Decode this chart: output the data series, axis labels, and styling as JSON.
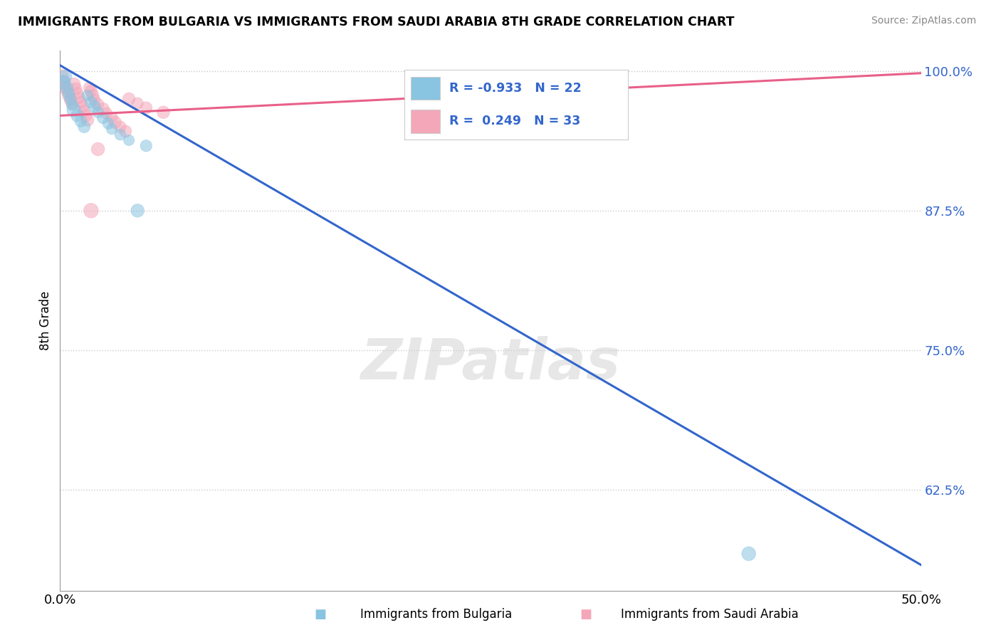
{
  "title": "IMMIGRANTS FROM BULGARIA VS IMMIGRANTS FROM SAUDI ARABIA 8TH GRADE CORRELATION CHART",
  "source": "Source: ZipAtlas.com",
  "xlabel_blue": "Immigrants from Bulgaria",
  "xlabel_pink": "Immigrants from Saudi Arabia",
  "ylabel": "8th Grade",
  "xlim": [
    0.0,
    0.5
  ],
  "ylim": [
    0.535,
    1.018
  ],
  "yticks": [
    0.625,
    0.75,
    0.875,
    1.0
  ],
  "ytick_labels": [
    "62.5%",
    "75.0%",
    "87.5%",
    "100.0%"
  ],
  "xticks": [
    0.0,
    0.1,
    0.2,
    0.3,
    0.4,
    0.5
  ],
  "xtick_labels": [
    "0.0%",
    "",
    "",
    "",
    "",
    "50.0%"
  ],
  "blue_R": -0.933,
  "blue_N": 22,
  "pink_R": 0.249,
  "pink_N": 33,
  "blue_color": "#89c4e1",
  "pink_color": "#f4a7b9",
  "blue_line_color": "#3366cc",
  "pink_line_color": "#e8608a",
  "legend_text_color": "#3366cc",
  "watermark": "ZIPatlas",
  "blue_scatter_x": [
    0.002,
    0.003,
    0.004,
    0.005,
    0.006,
    0.007,
    0.008,
    0.01,
    0.012,
    0.014,
    0.016,
    0.018,
    0.02,
    0.022,
    0.025,
    0.028,
    0.03,
    0.035,
    0.04,
    0.05,
    0.4,
    0.045
  ],
  "blue_scatter_y": [
    0.99,
    0.995,
    0.985,
    0.98,
    0.975,
    0.97,
    0.965,
    0.96,
    0.955,
    0.95,
    0.978,
    0.972,
    0.968,
    0.963,
    0.958,
    0.953,
    0.948,
    0.943,
    0.938,
    0.933,
    0.568,
    0.875
  ],
  "blue_scatter_size": [
    200,
    180,
    160,
    150,
    140,
    130,
    200,
    160,
    140,
    150,
    130,
    140,
    150,
    130,
    140,
    130,
    120,
    130,
    120,
    140,
    200,
    180
  ],
  "pink_scatter_x": [
    0.001,
    0.002,
    0.003,
    0.004,
    0.005,
    0.006,
    0.007,
    0.008,
    0.009,
    0.01,
    0.011,
    0.012,
    0.013,
    0.014,
    0.015,
    0.016,
    0.017,
    0.018,
    0.019,
    0.02,
    0.022,
    0.025,
    0.027,
    0.03,
    0.032,
    0.035,
    0.038,
    0.04,
    0.045,
    0.05,
    0.06,
    0.018,
    0.022
  ],
  "pink_scatter_y": [
    0.995,
    0.99,
    0.985,
    0.982,
    0.978,
    0.974,
    0.97,
    0.988,
    0.984,
    0.98,
    0.976,
    0.972,
    0.968,
    0.964,
    0.96,
    0.956,
    0.985,
    0.982,
    0.978,
    0.974,
    0.97,
    0.966,
    0.962,
    0.958,
    0.954,
    0.95,
    0.946,
    0.975,
    0.971,
    0.967,
    0.963,
    0.875,
    0.93
  ],
  "pink_scatter_size": [
    200,
    180,
    160,
    150,
    160,
    150,
    140,
    180,
    160,
    150,
    140,
    150,
    160,
    140,
    150,
    160,
    140,
    150,
    160,
    140,
    150,
    160,
    140,
    150,
    160,
    140,
    150,
    160,
    140,
    150,
    160,
    220,
    180
  ],
  "blue_trend_x": [
    0.0,
    0.5
  ],
  "blue_trend_y": [
    1.005,
    0.558
  ],
  "pink_trend_x": [
    0.0,
    0.5
  ],
  "pink_trend_y": [
    0.96,
    0.998
  ]
}
